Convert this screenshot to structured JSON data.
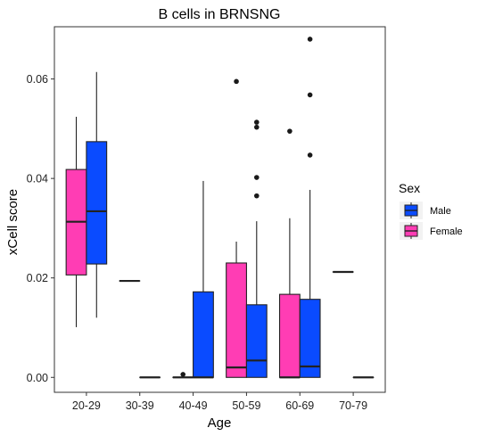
{
  "chart_data": {
    "type": "box",
    "title": "B cells in BRNSNG",
    "xlabel": "Age",
    "ylabel": "xCell score",
    "categories": [
      "20-29",
      "30-39",
      "40-49",
      "50-59",
      "60-69",
      "70-79"
    ],
    "ylim": [
      -0.003,
      0.0705
    ],
    "yticks": [
      0.0,
      0.02,
      0.04,
      0.06
    ],
    "ytick_labels": [
      "0.00",
      "0.02",
      "0.04",
      "0.06"
    ],
    "legend_title": "Sex",
    "legend_position": "right",
    "series": [
      {
        "name": "Male",
        "color": "#0a4bff",
        "boxes": [
          {
            "category": "20-29",
            "min": 0.012,
            "q1": 0.0228,
            "median": 0.0334,
            "q3": 0.0474,
            "max": 0.0614,
            "outliers": []
          },
          {
            "category": "30-39",
            "min": 0.0,
            "q1": 0.0,
            "median": 0.0,
            "q3": 0.0,
            "max": 0.0,
            "outliers": []
          },
          {
            "category": "40-49",
            "min": 0.0,
            "q1": 0.0,
            "median": 0.0,
            "q3": 0.0172,
            "max": 0.0395,
            "outliers": []
          },
          {
            "category": "50-59",
            "min": 0.0,
            "q1": 0.0,
            "median": 0.0034,
            "q3": 0.0146,
            "max": 0.0314,
            "outliers": [
              0.0365,
              0.0402,
              0.0503,
              0.0513
            ]
          },
          {
            "category": "60-69",
            "min": 0.0,
            "q1": 0.0,
            "median": 0.0022,
            "q3": 0.0157,
            "max": 0.0377,
            "outliers": [
              0.0447,
              0.0568,
              0.068
            ]
          },
          {
            "category": "70-79",
            "min": 0.0,
            "q1": 0.0,
            "median": 0.0,
            "q3": 0.0,
            "max": 0.0,
            "outliers": []
          }
        ]
      },
      {
        "name": "Female",
        "color": "#ff3db4",
        "boxes": [
          {
            "category": "20-29",
            "min": 0.0101,
            "q1": 0.0206,
            "median": 0.0313,
            "q3": 0.0418,
            "max": 0.0524,
            "outliers": []
          },
          {
            "category": "30-39",
            "min": 0.0194,
            "q1": 0.0194,
            "median": 0.0194,
            "q3": 0.0194,
            "max": 0.0194,
            "outliers": []
          },
          {
            "category": "40-49",
            "min": 0.0,
            "q1": 0.0,
            "median": 0.0,
            "q3": 0.0,
            "max": 0.0,
            "outliers": [
              0.0006
            ]
          },
          {
            "category": "50-59",
            "min": 0.0,
            "q1": 0.0,
            "median": 0.002,
            "q3": 0.023,
            "max": 0.0273,
            "outliers": [
              0.0595
            ]
          },
          {
            "category": "60-69",
            "min": 0.0,
            "q1": 0.0,
            "median": 0.0,
            "q3": 0.0167,
            "max": 0.032,
            "outliers": [
              0.0495
            ]
          },
          {
            "category": "70-79",
            "min": 0.0212,
            "q1": 0.0212,
            "median": 0.0212,
            "q3": 0.0212,
            "max": 0.0212,
            "outliers": []
          }
        ]
      }
    ]
  }
}
